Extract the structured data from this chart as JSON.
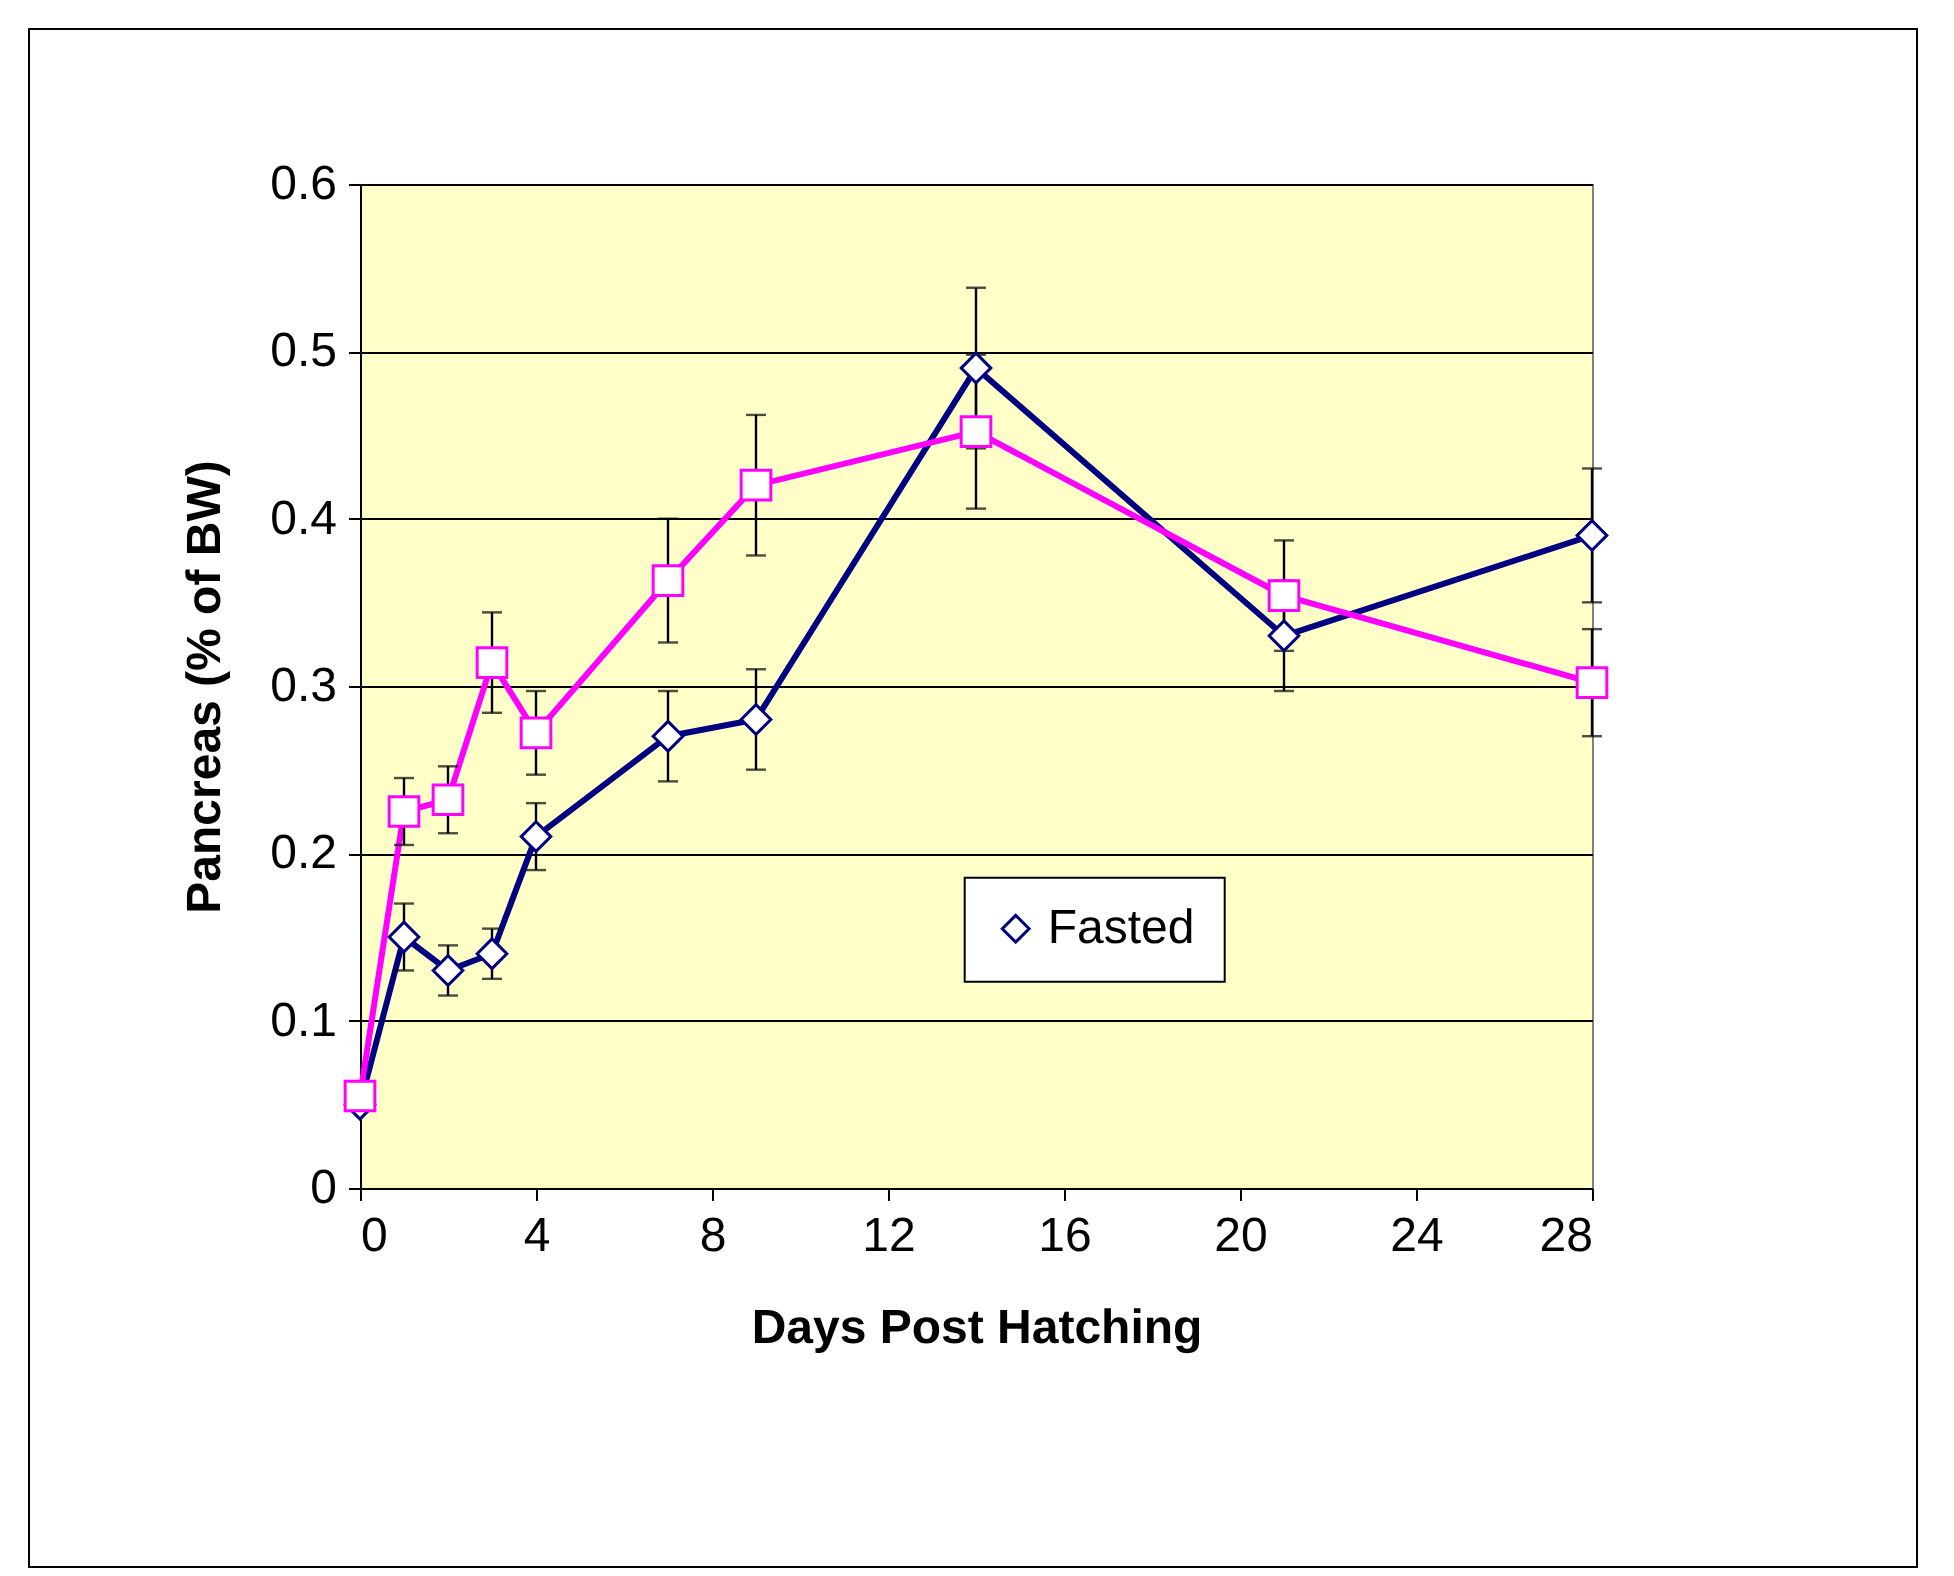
{
  "chart_data": {
    "type": "line",
    "xlabel": "Days Post Hatching",
    "ylabel": "Pancreas (% of BW)",
    "x": [
      0,
      1,
      2,
      3,
      4,
      7,
      9,
      14,
      21,
      28
    ],
    "series": [
      {
        "name": "Fasted",
        "color": "#000080",
        "marker": "diamond",
        "values": [
          0.05,
          0.15,
          0.13,
          0.14,
          0.21,
          0.27,
          0.28,
          0.49,
          0.33,
          0.39
        ],
        "errors": [
          null,
          0.02,
          0.015,
          0.015,
          0.02,
          0.027,
          0.03,
          0.048,
          0.033,
          0.04
        ]
      },
      {
        "color": "#ff00ff",
        "marker": "square",
        "values": [
          0.055,
          0.225,
          0.232,
          0.314,
          0.272,
          0.363,
          0.42,
          0.452,
          0.354,
          0.302
        ],
        "errors": [
          null,
          0.02,
          0.02,
          0.03,
          0.025,
          0.037,
          0.042,
          0.046,
          0.033,
          0.032
        ]
      }
    ],
    "xlim": [
      0,
      28
    ],
    "xticks": [
      0,
      4,
      8,
      12,
      16,
      20,
      24,
      28
    ],
    "ylim": [
      0,
      0.6
    ],
    "yticks": [
      0,
      0.1,
      0.2,
      0.3,
      0.4,
      0.5,
      0.6
    ],
    "grid": "y",
    "legend": "right",
    "line_style": "solid"
  }
}
